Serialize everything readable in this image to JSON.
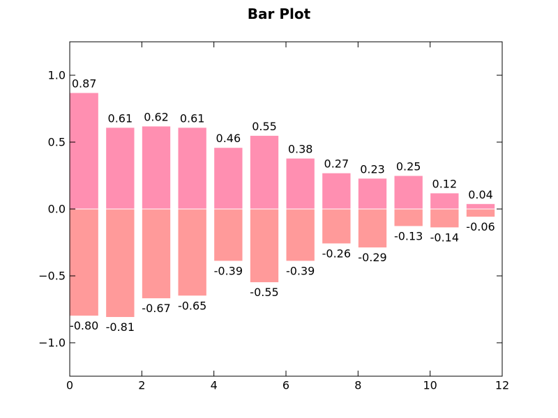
{
  "chart_data": {
    "type": "bar",
    "title": "Bar Plot",
    "xlabel": "",
    "ylabel": "",
    "xlim": [
      0,
      12
    ],
    "ylim": [
      -1.25,
      1.25
    ],
    "grid": false,
    "bar_width": 0.8,
    "x": [
      0,
      1,
      2,
      3,
      4,
      5,
      6,
      7,
      8,
      9,
      10,
      11
    ],
    "series": [
      {
        "values": [
          0.87,
          0.61,
          0.62,
          0.61,
          0.46,
          0.55,
          0.38,
          0.27,
          0.23,
          0.25,
          0.12,
          0.04
        ],
        "labels": [
          "0.87",
          "0.61",
          "0.62",
          "0.61",
          "0.46",
          "0.55",
          "0.38",
          "0.27",
          "0.23",
          "0.25",
          "0.12",
          "0.04"
        ],
        "color": "#ff8fb1"
      },
      {
        "values": [
          -0.8,
          -0.81,
          -0.67,
          -0.65,
          -0.39,
          -0.55,
          -0.39,
          -0.26,
          -0.29,
          -0.13,
          -0.14,
          -0.06
        ],
        "labels": [
          "-0.80",
          "-0.81",
          "-0.67",
          "-0.65",
          "-0.39",
          "-0.55",
          "-0.39",
          "-0.26",
          "-0.29",
          "-0.13",
          "-0.14",
          "-0.06"
        ],
        "color": "#ff9a9a"
      }
    ],
    "x_ticks": [
      {
        "value": 0,
        "label": "0"
      },
      {
        "value": 2,
        "label": "2"
      },
      {
        "value": 4,
        "label": "4"
      },
      {
        "value": 6,
        "label": "6"
      },
      {
        "value": 8,
        "label": "8"
      },
      {
        "value": 10,
        "label": "10"
      },
      {
        "value": 12,
        "label": "12"
      }
    ],
    "y_ticks": [
      {
        "value": 1.0,
        "label": "1.0"
      },
      {
        "value": 0.5,
        "label": "0.5"
      },
      {
        "value": 0.0,
        "label": "0.0"
      },
      {
        "value": -0.5,
        "label": "−0.5"
      },
      {
        "value": -1.0,
        "label": "−1.0"
      }
    ]
  }
}
